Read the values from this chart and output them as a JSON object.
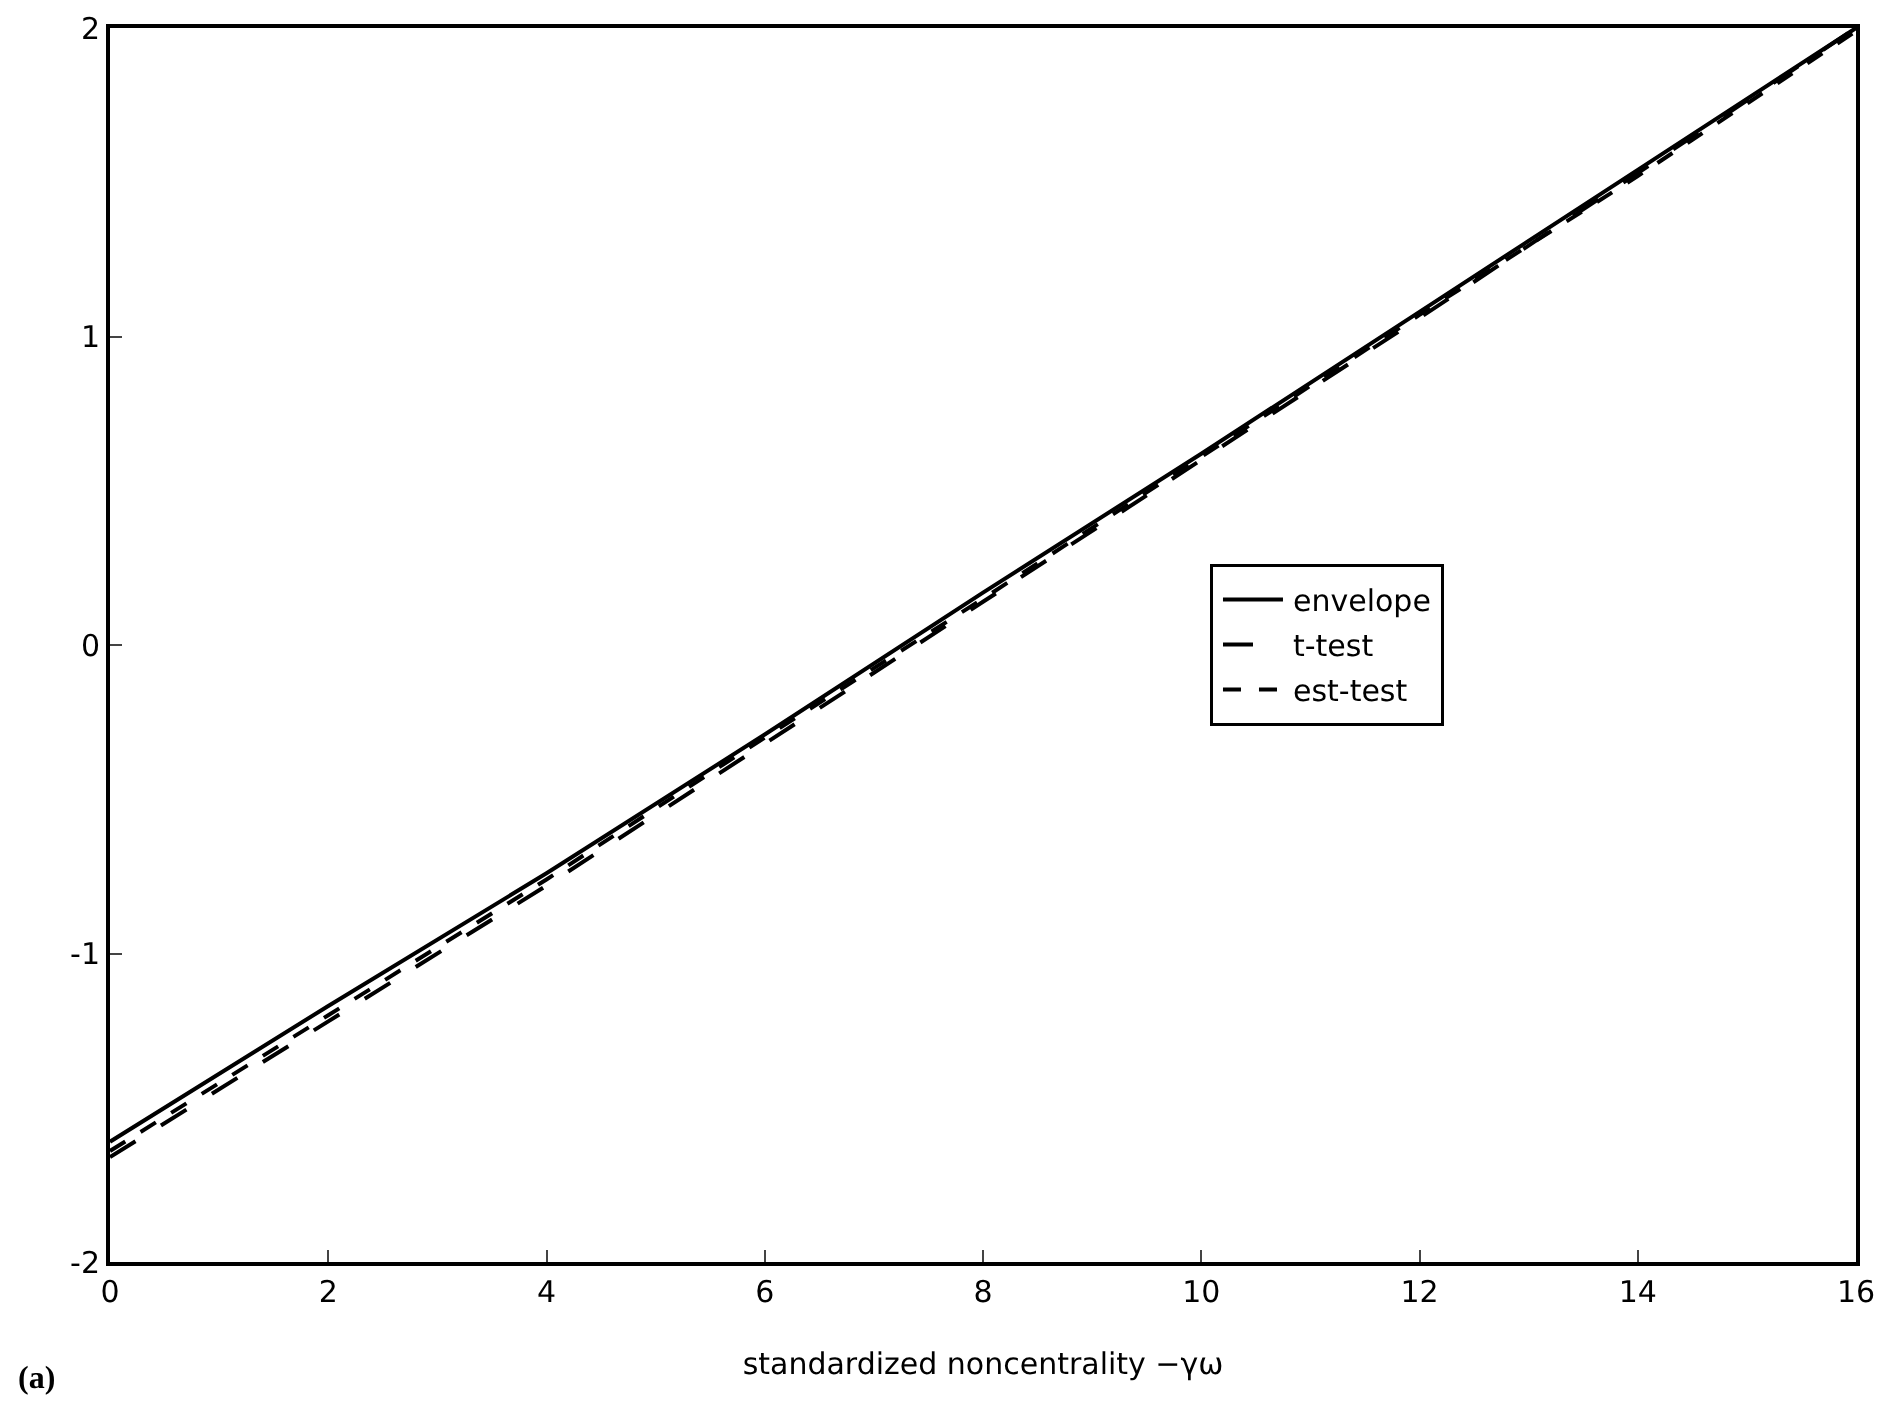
{
  "chart_data": {
    "type": "line",
    "xlabel": "standardized noncentrality −γω",
    "x": [
      0,
      2,
      4,
      6,
      8,
      10,
      12,
      14,
      16
    ],
    "series": [
      {
        "name": "envelope",
        "color": "#000000",
        "line_style": "solid",
        "values": [
          -1.61,
          -1.17,
          -0.74,
          -0.29,
          0.17,
          0.62,
          1.08,
          1.54,
          2.0
        ]
      },
      {
        "name": "t-test",
        "color": "#000000",
        "line_style": "longdash",
        "values": [
          -1.66,
          -1.22,
          -0.78,
          -0.32,
          0.14,
          0.6,
          1.06,
          1.53,
          2.0
        ]
      },
      {
        "name": "est-test",
        "color": "#000000",
        "line_style": "dashed",
        "values": [
          -1.64,
          -1.2,
          -0.76,
          -0.3,
          0.15,
          0.61,
          1.07,
          1.52,
          1.99
        ]
      }
    ],
    "xlim": [
      0,
      16
    ],
    "xticks": [
      0,
      2,
      4,
      6,
      8,
      10,
      12,
      14,
      16
    ],
    "ylim": [
      -2,
      2
    ],
    "yticks": [
      -2,
      -1,
      0,
      1,
      2
    ],
    "grid": false,
    "legend": "right",
    "marker": "none",
    "annotations": [
      "(a)"
    ]
  }
}
